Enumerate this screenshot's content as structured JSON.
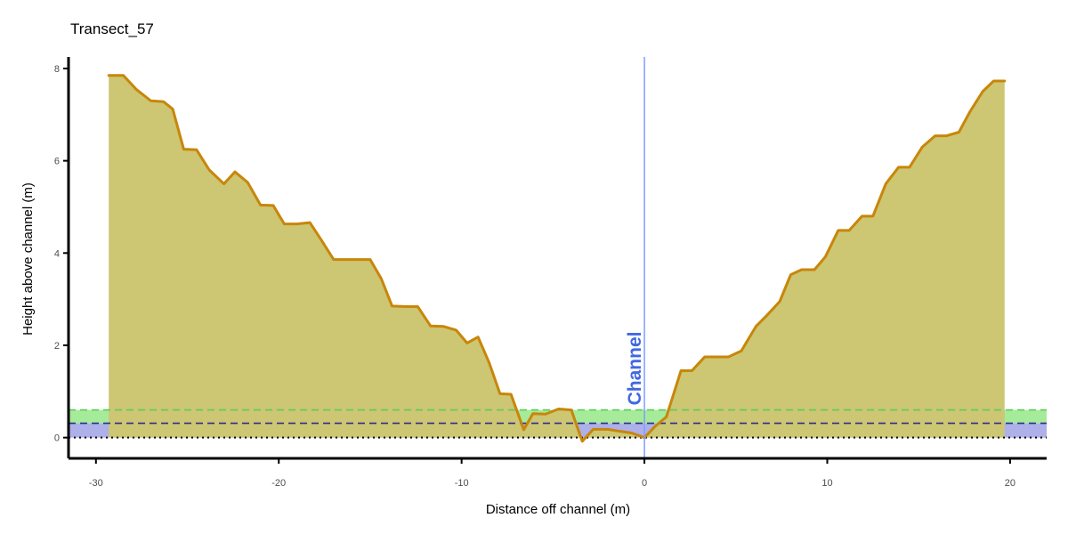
{
  "chart_data": {
    "type": "area",
    "title": "Transect_57",
    "xlabel": "Distance off channel (m)",
    "ylabel": "Height above channel (m)",
    "xlim": [
      -31.5,
      22
    ],
    "ylim": [
      -0.45,
      8.25
    ],
    "xticks": [
      -30,
      -20,
      -10,
      0,
      10,
      20
    ],
    "xtick_labels": [
      "-30",
      "-20",
      "-10",
      "0",
      "10",
      "20"
    ],
    "yticks": [
      0,
      2,
      4,
      6,
      8
    ],
    "ytick_labels": [
      "0",
      "2",
      "4",
      "6",
      "8"
    ],
    "grid": false,
    "channel": {
      "x": 0,
      "label": "Channel",
      "line_color": "#7f9cff",
      "label_color": "#4169e1"
    },
    "reference_levels": [
      {
        "y": 0,
        "style": "dotted",
        "color": "#000000"
      },
      {
        "y": 0.31,
        "style": "dashed",
        "color": "#2b2b8c",
        "band_color": "#aeb0ea"
      },
      {
        "y": 0.6,
        "style": "dashed",
        "color": "#5ccc5c",
        "band_color": "#a6eb9a"
      }
    ],
    "profile_color": "#c8860a",
    "fill_color": "#cdc672",
    "profile": {
      "x": [
        -29.3,
        -28.5,
        -27.8,
        -27.0,
        -26.3,
        -25.8,
        -25.2,
        -24.5,
        -23.8,
        -23.0,
        -22.4,
        -21.7,
        -21.0,
        -20.3,
        -19.7,
        -19.0,
        -18.3,
        -17.7,
        -17.0,
        -16.4,
        -15.7,
        -15.0,
        -14.4,
        -13.8,
        -13.0,
        -12.4,
        -11.7,
        -11.0,
        -10.3,
        -9.7,
        -9.1,
        -8.5,
        -7.9,
        -7.3,
        -6.6,
        -6.1,
        -5.4,
        -4.7,
        -4.0,
        -3.4,
        -2.8,
        -2.0,
        -1.4,
        -0.7,
        0.0,
        0.6,
        1.2,
        2.0,
        2.6,
        3.3,
        3.9,
        4.6,
        5.3,
        6.1,
        6.7,
        7.4,
        8.0,
        8.6,
        9.3,
        9.9,
        10.6,
        11.2,
        11.9,
        12.5,
        13.2,
        13.9,
        14.5,
        15.2,
        15.9,
        16.5,
        17.2,
        17.8,
        18.5,
        19.1,
        19.7
      ],
      "y": [
        7.85,
        7.85,
        7.55,
        7.3,
        7.28,
        7.12,
        6.25,
        6.24,
        5.8,
        5.5,
        5.76,
        5.53,
        5.04,
        5.03,
        4.63,
        4.63,
        4.66,
        4.3,
        3.86,
        3.86,
        3.86,
        3.86,
        3.45,
        2.85,
        2.84,
        2.84,
        2.42,
        2.41,
        2.33,
        2.05,
        2.18,
        1.63,
        0.95,
        0.94,
        0.17,
        0.52,
        0.51,
        0.62,
        0.6,
        -0.08,
        0.18,
        0.18,
        0.14,
        0.1,
        0.0,
        0.25,
        0.45,
        1.45,
        1.45,
        1.75,
        1.75,
        1.75,
        1.88,
        2.41,
        2.65,
        2.95,
        3.53,
        3.64,
        3.64,
        3.92,
        4.49,
        4.49,
        4.8,
        4.8,
        5.5,
        5.86,
        5.86,
        6.3,
        6.54,
        6.54,
        6.62,
        7.06,
        7.5,
        7.73,
        7.73
      ]
    }
  }
}
